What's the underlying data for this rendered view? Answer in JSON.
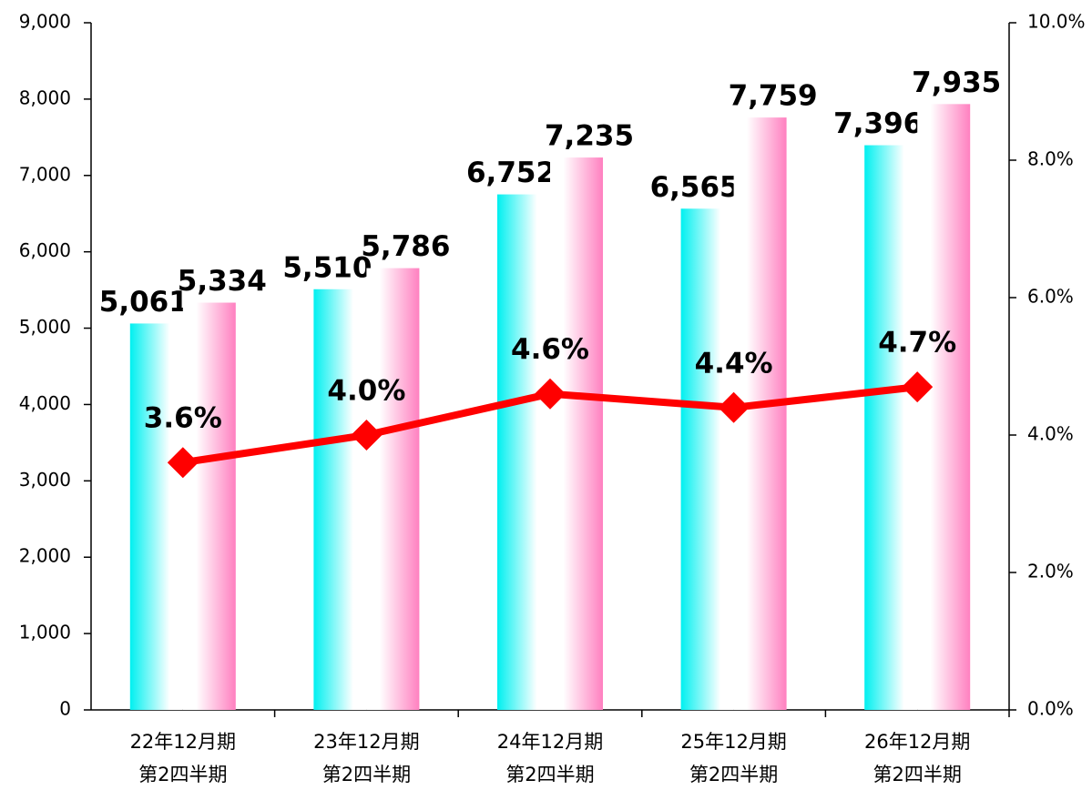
{
  "chart_data": {
    "type": "bar_line",
    "categories": [
      [
        "22年12月期",
        "第2四半期"
      ],
      [
        "23年12月期",
        "第2四半期"
      ],
      [
        "24年12月期",
        "第2四半期"
      ],
      [
        "25年12月期",
        "第2四半期"
      ],
      [
        "26年12月期",
        "第2四半期"
      ]
    ],
    "series": [
      {
        "type": "bar",
        "color": "#00f0f0",
        "values": [
          5061,
          5510,
          6752,
          6565,
          7396
        ],
        "value_labels": [
          "5,061",
          "5,510",
          "6,752",
          "6,565",
          "7,396"
        ]
      },
      {
        "type": "bar",
        "color": "#ff80c0",
        "values": [
          5334,
          5786,
          7235,
          7759,
          7935
        ],
        "value_labels": [
          "5,334",
          "5,786",
          "7,235",
          "7,759",
          "7,935"
        ]
      },
      {
        "type": "line",
        "axis": "y2",
        "color": "#ff0000",
        "values": [
          3.6,
          4.0,
          4.6,
          4.4,
          4.7
        ],
        "value_labels": [
          "3.6%",
          "4.0%",
          "4.6%",
          "4.4%",
          "4.7%"
        ]
      }
    ],
    "ylim": [
      0,
      9000
    ],
    "yticks": [
      0,
      {
        "value": 1000,
        "label": "1,000"
      },
      {
        "value": 2000,
        "label": "2,000"
      },
      {
        "value": 3000,
        "label": "3,000"
      },
      {
        "value": 4000,
        "label": "4,000"
      },
      {
        "value": 5000,
        "label": "5,000"
      },
      {
        "value": 6000,
        "label": "6,000"
      },
      {
        "value": 7000,
        "label": "7,000"
      },
      {
        "value": 8000,
        "label": "8,000"
      },
      {
        "value": 9000,
        "label": "9,000"
      }
    ],
    "y2lim": [
      0,
      10
    ],
    "y2ticks": [
      {
        "value": 0,
        "label": "0.0%"
      },
      {
        "value": 2,
        "label": "2.0%"
      },
      {
        "value": 4,
        "label": "4.0%"
      },
      {
        "value": 6,
        "label": "6.0%"
      },
      {
        "value": 8,
        "label": "8.0%"
      },
      {
        "value": 10,
        "label": "10.0%"
      }
    ]
  }
}
